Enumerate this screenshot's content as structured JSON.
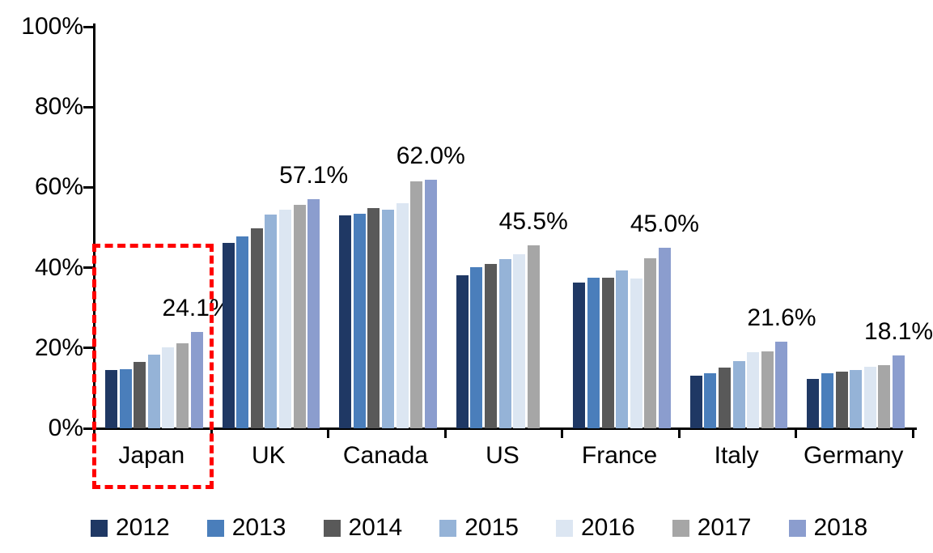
{
  "chart_data": {
    "type": "bar",
    "title": "",
    "xlabel": "",
    "ylabel": "",
    "ylim": [
      0,
      100
    ],
    "y_ticks": [
      "0%",
      "20%",
      "40%",
      "60%",
      "80%",
      "100%"
    ],
    "grid": false,
    "legend_position": "bottom",
    "categories": [
      "Japan",
      "UK",
      "Canada",
      "US",
      "France",
      "Italy",
      "Germany"
    ],
    "series": [
      {
        "name": "2012",
        "color": "#1F3864",
        "values": [
          14.6,
          46.2,
          53.0,
          38.2,
          36.3,
          13.1,
          12.4
        ]
      },
      {
        "name": "2013",
        "color": "#4A7EBB",
        "values": [
          14.8,
          47.8,
          53.5,
          40.1,
          37.5,
          13.8,
          13.8
        ]
      },
      {
        "name": "2014",
        "color": "#595959",
        "values": [
          16.5,
          49.9,
          54.8,
          41.0,
          37.5,
          15.1,
          14.2
        ]
      },
      {
        "name": "2015",
        "color": "#95B3D7",
        "values": [
          18.3,
          53.2,
          54.5,
          42.1,
          39.3,
          16.7,
          14.6
        ]
      },
      {
        "name": "2016",
        "color": "#DCE6F2",
        "values": [
          20.2,
          54.5,
          56.0,
          43.4,
          37.3,
          18.9,
          15.4
        ]
      },
      {
        "name": "2017",
        "color": "#A6A6A6",
        "values": [
          21.1,
          55.7,
          61.6,
          45.5,
          42.3,
          19.1,
          15.7
        ]
      },
      {
        "name": "2018",
        "color": "#8B9DCE",
        "values": [
          24.1,
          57.1,
          62.0,
          null,
          45.0,
          21.6,
          18.1
        ]
      }
    ],
    "data_labels": [
      "24.1%",
      "57.1%",
      "62.0%",
      "45.5%",
      "45.0%",
      "21.6%",
      "18.1%"
    ],
    "annotation": {
      "type": "dashed-box",
      "target": "Japan",
      "color": "#FF0000"
    }
  }
}
